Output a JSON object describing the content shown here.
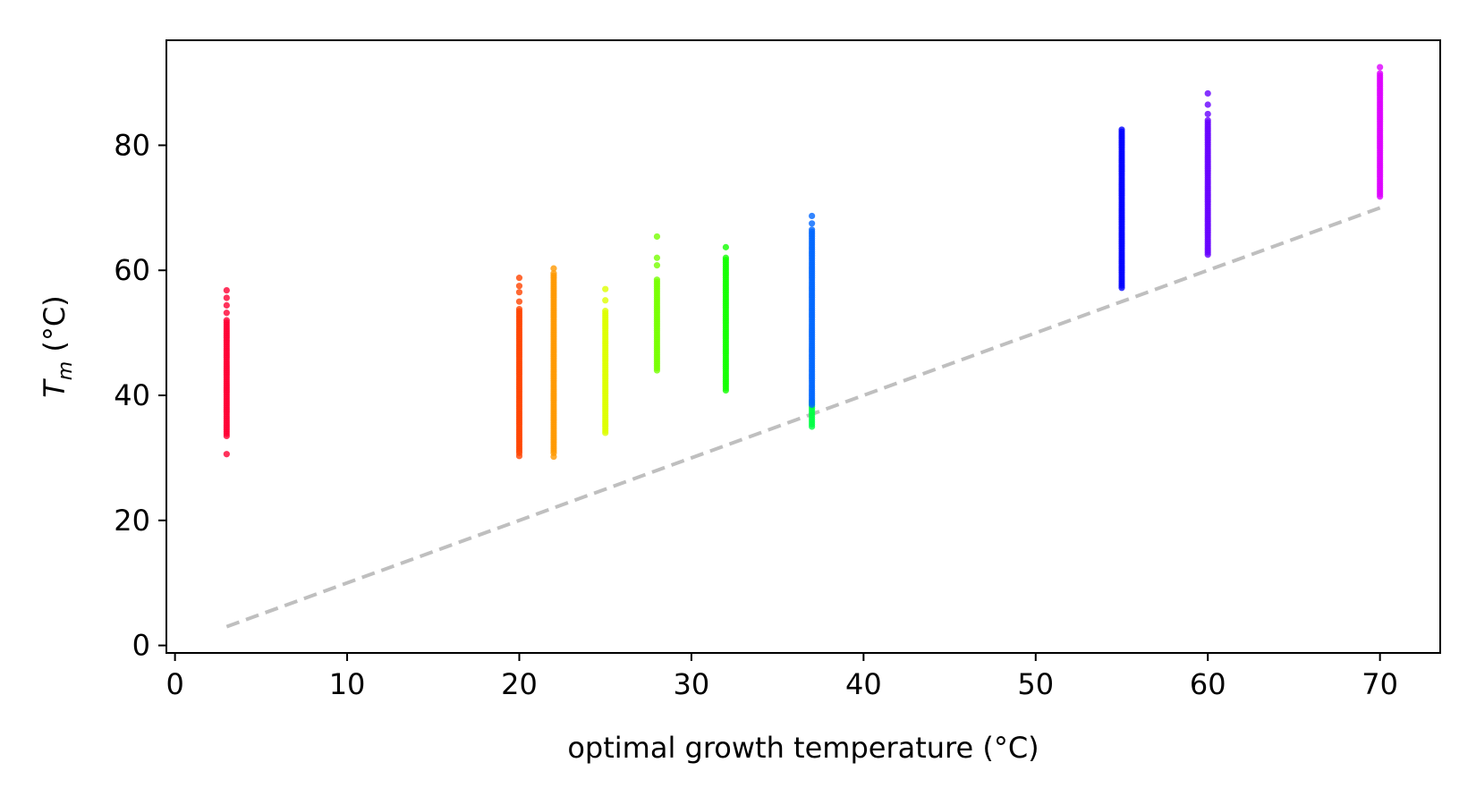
{
  "chart_data": {
    "type": "scatter",
    "title": "",
    "xlabel": "optimal growth temperature (°C)",
    "ylabel_main": "T",
    "ylabel_sub": "m",
    "ylabel_rest": " (°C)",
    "xlim": [
      -0.5,
      73.5
    ],
    "ylim": [
      -1.2,
      96.8
    ],
    "xticks": [
      0,
      10,
      20,
      30,
      40,
      50,
      60,
      70
    ],
    "yticks": [
      0,
      20,
      40,
      60,
      80
    ],
    "grid": false,
    "legend": "none",
    "reference_line": {
      "style": "dashed",
      "color": "#bfbfbf",
      "x": [
        3,
        70
      ],
      "y": [
        3,
        70
      ]
    },
    "series": [
      {
        "x": 3,
        "ymin": 33.5,
        "ymax": 52.0,
        "outliers": [
          30.6,
          53.2,
          54.4,
          55.6,
          56.8
        ],
        "color": "#ff0033"
      },
      {
        "x": 20,
        "ymin": 30.8,
        "ymax": 53.8,
        "outliers": [
          30.3,
          55.0,
          56.5,
          57.5,
          58.8
        ],
        "color": "#ff4400"
      },
      {
        "x": 22,
        "ymin": 30.8,
        "ymax": 59.5,
        "outliers": [
          30.2,
          60.3
        ],
        "color": "#ff9900"
      },
      {
        "x": 25,
        "ymin": 34.0,
        "ymax": 53.5,
        "outliers": [
          55.2,
          57.0
        ],
        "color": "#ddff00"
      },
      {
        "x": 28,
        "ymin": 44.0,
        "ymax": 58.5,
        "outliers": [
          60.8,
          62.0,
          65.4
        ],
        "color": "#77ff00"
      },
      {
        "x": 32,
        "ymin": 40.8,
        "ymax": 62.0,
        "outliers": [
          63.7
        ],
        "color": "#11ff00"
      },
      {
        "x": 37,
        "ymin": 35.0,
        "ymax": 39.0,
        "outliers": [],
        "color": "#00ff44"
      },
      {
        "x": 37,
        "ymin": 38.5,
        "ymax": 66.5,
        "outliers": [
          67.5,
          68.7
        ],
        "color": "#0066ff"
      },
      {
        "x": 55,
        "ymin": 57.2,
        "ymax": 82.5,
        "outliers": [],
        "color": "#0000ff"
      },
      {
        "x": 60,
        "ymin": 62.5,
        "ymax": 84.0,
        "outliers": [
          85.0,
          86.5,
          88.3
        ],
        "color": "#6600ff"
      },
      {
        "x": 70,
        "ymin": 71.8,
        "ymax": 91.5,
        "outliers": [
          92.5
        ],
        "color": "#dd00ff"
      }
    ]
  }
}
